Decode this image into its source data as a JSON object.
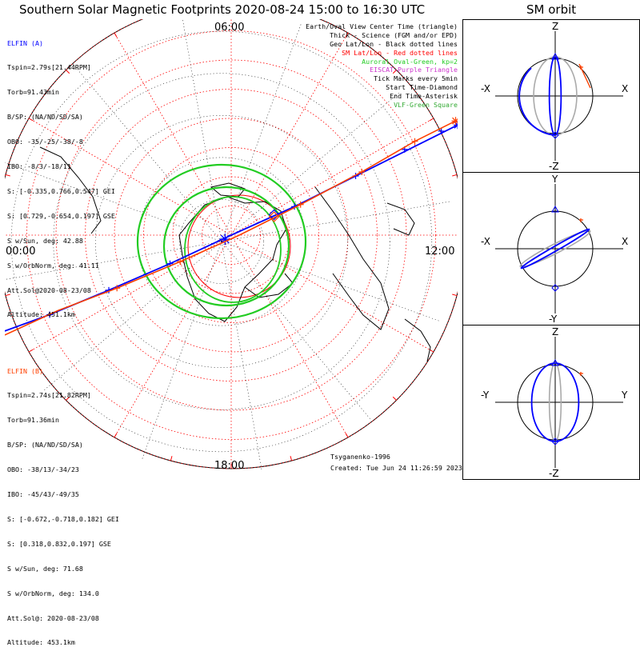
{
  "header": {
    "title": "Southern Solar Magnetic Footprints 2020-08-24 15:00 to 16:30 UTC",
    "sm_title": "SM orbit"
  },
  "colors": {
    "elfin_a": "#0000ff",
    "elfin_b": "#ff4000",
    "auroral_oval": "#22cc22",
    "sm_grid": "#ff0000",
    "geo_grid": "#000000",
    "eiscat": "#cc33cc",
    "vlf": "#33aa33",
    "orbit_shadow": "#aaaaaa"
  },
  "legend": [
    {
      "text": "Earth/Oval View Center Time (triangle)",
      "color": "#000000"
    },
    {
      "text": "Thick - Science (FGM and/or EPD)",
      "color": "#000000"
    },
    {
      "text": "Geo Lat/Lon - Black dotted lines",
      "color": "#000000"
    },
    {
      "text": "SM Lat/Lon - Red dotted lines",
      "color": "#ff0000"
    },
    {
      "text": "Auroral Oval-Green, kp=2",
      "color": "#22cc22"
    },
    {
      "text": "EISCAT-Purple Triangle",
      "color": "#cc33cc"
    },
    {
      "text": "Tick Marks every 5min",
      "color": "#000000"
    },
    {
      "text": "Start Time-Diamond",
      "color": "#000000"
    },
    {
      "text": "End Time-Asterisk",
      "color": "#000000"
    },
    {
      "text": "VLF-Green Square",
      "color": "#33aa33"
    }
  ],
  "elfin_a": {
    "lines": [
      "ELFIN (A)",
      "Tspin=2.79s[21.44RPM]",
      "Torb=91.43min",
      "B/SP: (NA/ND/SD/SA)",
      "OBO: -35/-25/-38/-8",
      "IBO: -8/3/-18/11",
      "S: [-0.335,0.766,0.547] GEI",
      "S: [0.729,-0.654,0.197] GSE",
      "S w/Sun, deg: 42.88",
      "S w/OrbNorm, deg: 41.11",
      "Att.Sol@2020-08-23/08",
      "Altitude: 451.1km"
    ]
  },
  "elfin_b": {
    "lines": [
      "ELFIN (B)",
      "Tspin=2.74s[21.82RPM]",
      "Torb=91.36min",
      "B/SP: (NA/ND/SD/SA)",
      "OBO: -38/13/-34/23",
      "IBO: -45/43/-49/35",
      "S: [-0.672,-0.718,0.182] GEI",
      "S: [0.318,0.832,0.197] GSE",
      "S w/Sun, deg: 71.68",
      "S w/OrbNorm, deg: 134.0",
      "Att.Sol@: 2020-08-23/08",
      "Altitude: 453.1km"
    ]
  },
  "footer": {
    "credit": "Tsyganenko-1996",
    "created": "Created: Tue Jun 24 11:26:59 2023"
  },
  "chart_data": {
    "type": "polar-map",
    "projection": "southern hemisphere polar, SM coordinates, MLT around rim",
    "mlt_labels": [
      {
        "mlt": 6,
        "text": "06:00"
      },
      {
        "mlt": 12,
        "text": "12:00"
      },
      {
        "mlt": 18,
        "text": "18:00"
      },
      {
        "mlt": 0,
        "text": "00:00"
      }
    ],
    "sm_colatitude_rings_deg": [
      10,
      20,
      30,
      40,
      50,
      60,
      70,
      80
    ],
    "auroral_oval_kp": 2,
    "tracks": [
      {
        "name": "ELFIN (A)",
        "color": "#0000ff",
        "points": [
          [
            -1.11,
            0.47
          ],
          [
            -0.89,
            0.39
          ],
          [
            -0.6,
            0.27
          ],
          [
            -0.3,
            0.14
          ],
          [
            0.0,
            0.0
          ],
          [
            0.31,
            -0.14
          ],
          [
            0.61,
            -0.29
          ],
          [
            0.89,
            -0.43
          ],
          [
            1.11,
            -0.54
          ]
        ],
        "ticks": [
          [
            -0.89,
            0.39
          ],
          [
            -0.6,
            0.27
          ],
          [
            -0.3,
            0.14
          ],
          [
            0.31,
            -0.14
          ],
          [
            0.61,
            -0.29
          ],
          [
            0.85,
            -0.42
          ],
          [
            1.03,
            -0.51
          ]
        ],
        "start": [
          0.21,
          -0.1
        ],
        "end": [
          1.11,
          -0.54
        ],
        "center": [
          -0.03,
          0.02
        ]
      },
      {
        "name": "ELFIN (B)",
        "color": "#ff4000",
        "points": [
          [
            -1.11,
            0.49
          ],
          [
            -0.85,
            0.37
          ],
          [
            -0.56,
            0.26
          ],
          [
            -0.25,
            0.13
          ],
          [
            0.04,
            0.0
          ],
          [
            0.34,
            -0.15
          ],
          [
            0.64,
            -0.31
          ],
          [
            0.9,
            -0.46
          ],
          [
            1.1,
            -0.56
          ]
        ],
        "ticks": [
          [
            -0.56,
            0.26
          ],
          [
            -0.25,
            0.13
          ],
          [
            0.34,
            -0.15
          ],
          [
            0.64,
            -0.31
          ],
          [
            0.9,
            -0.46
          ]
        ],
        "start": [
          0.21,
          -0.09
        ],
        "end": [
          1.1,
          -0.56
        ]
      }
    ],
    "sm_orbit_panels": [
      {
        "x_axis": "X",
        "y_axis": "Z",
        "neg_x": "-X",
        "neg_y": "-Z",
        "blue_orbit": {
          "tilt": 0.0,
          "squash": 0.15
        },
        "red_orbit": {
          "tilt": 0.0,
          "squash": 0.55
        }
      },
      {
        "x_axis": "X",
        "y_axis": "Y",
        "neg_x": "-X",
        "neg_y": "-Y",
        "blue_orbit": {
          "tilt": -0.52,
          "squash": 0.06
        },
        "red_orbit": {
          "tilt": -0.47,
          "squash": 0.12
        }
      },
      {
        "x_axis": "Y",
        "y_axis": "Z",
        "neg_x": "-Y",
        "neg_y": "-Z",
        "blue_orbit": {
          "tilt": 0.0,
          "squash": 0.6
        },
        "red_orbit": {
          "tilt": 0.0,
          "squash": 0.15
        }
      }
    ]
  }
}
